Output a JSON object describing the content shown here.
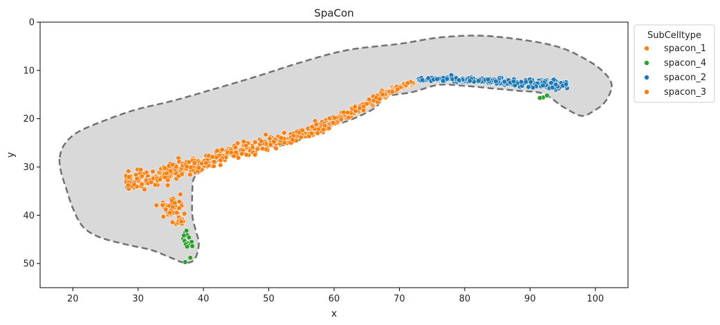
{
  "chart_data": {
    "type": "scatter",
    "title": "SpaCon",
    "xlabel": "x",
    "ylabel": "y",
    "xlim": [
      15,
      105
    ],
    "ylim": [
      55,
      0
    ],
    "y_inverted": true,
    "grid": false,
    "xticks": [
      20,
      30,
      40,
      50,
      60,
      70,
      80,
      90,
      100
    ],
    "yticks": [
      0,
      10,
      20,
      30,
      40,
      50
    ],
    "legend": {
      "title": "SubCelltype",
      "placement": "outside-top-right",
      "entries": [
        {
          "name": "spacon_1",
          "color": "#ff7f0e"
        },
        {
          "name": "spacon_4",
          "color": "#2ca02c"
        },
        {
          "name": "spacon_2",
          "color": "#1f77b4"
        },
        {
          "name": "spacon_3",
          "color": "#ff7f0e"
        }
      ]
    },
    "region_outline": {
      "fill": "#d9d9d9",
      "stroke": "#707070",
      "style": "dashed",
      "points": [
        [
          18,
          28
        ],
        [
          18.8,
          25.2
        ],
        [
          21,
          22.6
        ],
        [
          26,
          19.8
        ],
        [
          30,
          18
        ],
        [
          35,
          16.4
        ],
        [
          40,
          14.5
        ],
        [
          48,
          11.3
        ],
        [
          55,
          8.3
        ],
        [
          62,
          5.8
        ],
        [
          70,
          4.5
        ],
        [
          76,
          3.2
        ],
        [
          82,
          2.8
        ],
        [
          88,
          3.5
        ],
        [
          94,
          5
        ],
        [
          98,
          7.3
        ],
        [
          101,
          10
        ],
        [
          102.5,
          13
        ],
        [
          101.5,
          16.5
        ],
        [
          99.5,
          18.6
        ],
        [
          97.8,
          19.4
        ],
        [
          95,
          17.5
        ],
        [
          92,
          14.8
        ],
        [
          88,
          14.2
        ],
        [
          84,
          13.7
        ],
        [
          80,
          13.2
        ],
        [
          76,
          13
        ],
        [
          72,
          14.5
        ],
        [
          68,
          15.5
        ],
        [
          66,
          18
        ],
        [
          62,
          20.5
        ],
        [
          58,
          22
        ],
        [
          54,
          24.8
        ],
        [
          50,
          26
        ],
        [
          46,
          27.1
        ],
        [
          43,
          28.3
        ],
        [
          41,
          29.5
        ],
        [
          39.5,
          31
        ],
        [
          38.5,
          32.5
        ],
        [
          38.3,
          35
        ],
        [
          38.3,
          40
        ],
        [
          38.8,
          43
        ],
        [
          39.3,
          46
        ],
        [
          38.6,
          49.2
        ],
        [
          37,
          49.8
        ],
        [
          35,
          48.8
        ],
        [
          32,
          47.2
        ],
        [
          28,
          46
        ],
        [
          24,
          44.5
        ],
        [
          21.5,
          42.3
        ],
        [
          20,
          38.5
        ],
        [
          19,
          34.5
        ],
        [
          18.2,
          31
        ]
      ]
    },
    "series": [
      {
        "name": "spacon_3",
        "color": "#ff7f0e",
        "point_count": 660,
        "generator": "band",
        "path": [
          [
            28,
            33
          ],
          [
            31,
            33
          ],
          [
            35,
            31
          ],
          [
            38,
            29.5
          ],
          [
            42,
            28
          ],
          [
            46,
            26.2
          ],
          [
            50,
            25.3
          ],
          [
            54,
            23.8
          ],
          [
            57,
            22.3
          ],
          [
            60,
            20.5
          ],
          [
            63,
            18.4
          ],
          [
            66,
            16.3
          ],
          [
            69,
            14
          ],
          [
            72,
            12.5
          ]
        ],
        "width_start": 3.8,
        "width_end": 0.7,
        "extra_clusters": [
          {
            "cx": 35,
            "cy": 38.5,
            "sx": 1.6,
            "sy": 1.8,
            "n": 40
          },
          {
            "cx": 36.5,
            "cy": 41,
            "sx": 0.6,
            "sy": 1.1,
            "n": 12
          }
        ]
      },
      {
        "name": "spacon_2",
        "color": "#1f77b4",
        "point_count": 330,
        "generator": "band",
        "path": [
          [
            73,
            11.8
          ],
          [
            78,
            11.8
          ],
          [
            84,
            12.2
          ],
          [
            88,
            12.7
          ],
          [
            92,
            12.7
          ],
          [
            95.5,
            13
          ]
        ],
        "width_start": 0.55,
        "width_end": 1.7
      },
      {
        "name": "spacon_4",
        "color": "#2ca02c",
        "points": [
          [
            36.9,
            44.8
          ],
          [
            37.2,
            43.6
          ],
          [
            37.5,
            44.1
          ],
          [
            37.1,
            45.3
          ],
          [
            37.6,
            45.8
          ],
          [
            38.0,
            46.2
          ],
          [
            37.3,
            46.0
          ],
          [
            37.8,
            44.6
          ],
          [
            37.4,
            43.2
          ],
          [
            38.2,
            45.5
          ],
          [
            37.0,
            44.2
          ],
          [
            38.3,
            46.4
          ],
          [
            37.5,
            46.5
          ],
          [
            38.0,
            48.8
          ],
          [
            37.2,
            49.7
          ],
          [
            92.0,
            15.6
          ],
          [
            91.5,
            15.7
          ],
          [
            92.6,
            15.2
          ]
        ]
      }
    ]
  }
}
